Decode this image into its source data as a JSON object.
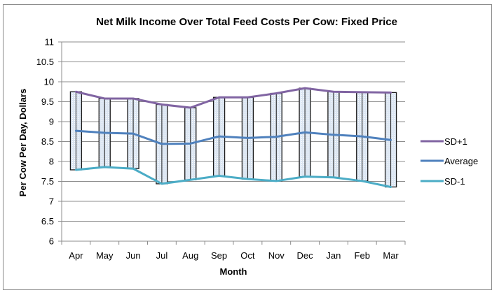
{
  "chart_data": {
    "type": "line",
    "title": "Net Milk Income Over Total Feed Costs Per Cow: Fixed Price",
    "xlabel": "Month",
    "ylabel": "Per Cow Per Day, Dollars",
    "ylim": [
      6,
      11
    ],
    "ytick_step": 0.5,
    "yticks": [
      "6",
      "6.5",
      "7",
      "7.5",
      "8",
      "8.5",
      "9",
      "9.5",
      "10",
      "10.5",
      "11"
    ],
    "grid": true,
    "legend_position": "right",
    "categories": [
      "Apr",
      "May",
      "Jun",
      "Jul",
      "Aug",
      "Sep",
      "Oct",
      "Nov",
      "Dec",
      "Jan",
      "Feb",
      "Mar"
    ],
    "series": [
      {
        "name": "SD+1",
        "color": "#8064a2",
        "values": [
          9.75,
          9.58,
          9.58,
          9.43,
          9.35,
          9.61,
          9.61,
          9.71,
          9.84,
          9.75,
          9.74,
          9.73
        ]
      },
      {
        "name": "Average",
        "color": "#4f81bd",
        "values": [
          8.77,
          8.72,
          8.7,
          8.44,
          8.45,
          8.63,
          8.59,
          8.62,
          8.73,
          8.67,
          8.63,
          8.54
        ]
      },
      {
        "name": "SD-1",
        "color": "#4bacc6",
        "values": [
          7.79,
          7.86,
          7.82,
          7.44,
          7.54,
          7.64,
          7.56,
          7.51,
          7.62,
          7.6,
          7.51,
          7.36
        ]
      }
    ],
    "range_bars": {
      "description": "high-low boxes spanning SD-1 to SD+1 per month",
      "fill": "#dce6f2",
      "stroke": "#000000"
    }
  }
}
